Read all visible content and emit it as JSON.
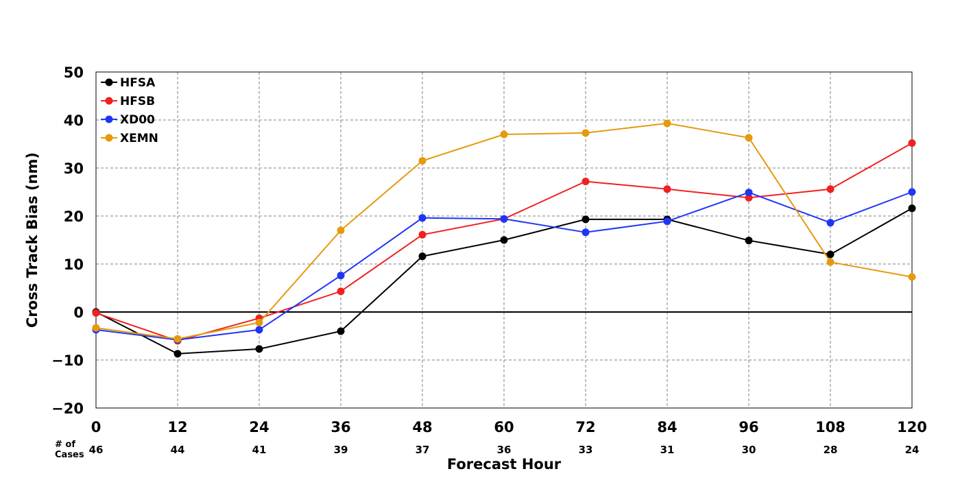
{
  "chart_data": {
    "type": "line",
    "title": "",
    "xlabel": "Forecast Hour",
    "ylabel": "Cross Track Bias (nm)",
    "x": [
      0,
      12,
      24,
      36,
      48,
      60,
      72,
      84,
      96,
      108,
      120
    ],
    "xticks": [
      "0",
      "12",
      "24",
      "36",
      "48",
      "60",
      "72",
      "84",
      "96",
      "108",
      "120"
    ],
    "xlim": [
      0,
      120
    ],
    "ylim": [
      -20,
      50
    ],
    "yticks": [
      -20,
      -10,
      0,
      10,
      20,
      30,
      40,
      50
    ],
    "ytick_labels": [
      "−20",
      "−10",
      "0",
      "10",
      "20",
      "30",
      "40",
      "50"
    ],
    "grid": true,
    "legend_position": "top-left",
    "series": [
      {
        "name": "HFSA",
        "color": "#000000",
        "values": [
          0,
          -8.7,
          -7.7,
          -4,
          11.6,
          15,
          19.3,
          19.3,
          14.9,
          12,
          21.6
        ]
      },
      {
        "name": "HFSB",
        "color": "#f02020",
        "values": [
          -0.2,
          -6,
          -1.3,
          4.3,
          16.1,
          19.4,
          27.2,
          25.6,
          23.8,
          25.6,
          35.2
        ]
      },
      {
        "name": "XD00",
        "color": "#1f35f5",
        "values": [
          -3.7,
          -5.8,
          -3.7,
          7.6,
          19.6,
          19.4,
          16.6,
          18.9,
          24.9,
          18.6,
          25
        ]
      },
      {
        "name": "XEMN",
        "color": "#e59a0d",
        "values": [
          -3.3,
          -5.6,
          -2.2,
          17,
          31.5,
          37,
          37.3,
          39.3,
          36.3,
          10.4,
          7.3
        ]
      }
    ],
    "cases_label": "# of\nCases",
    "cases": [
      "46",
      "44",
      "41",
      "39",
      "37",
      "36",
      "33",
      "31",
      "30",
      "28",
      "24"
    ]
  }
}
